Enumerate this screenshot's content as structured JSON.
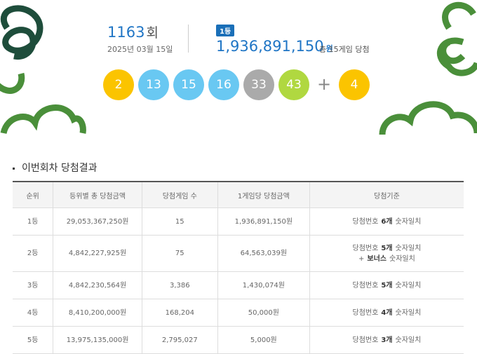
{
  "round": {
    "number": "1163",
    "suffix": "회",
    "date": "2025년 03월 15일"
  },
  "first_prize": {
    "badge": "1등",
    "amount": "1,936,891,150",
    "unit": "원",
    "winners": "총 15게임 당첨"
  },
  "balls": [
    {
      "number": 2,
      "color": "#fbc400"
    },
    {
      "number": 13,
      "color": "#69c8f2"
    },
    {
      "number": 15,
      "color": "#69c8f2"
    },
    {
      "number": 16,
      "color": "#69c8f2"
    },
    {
      "number": 33,
      "color": "#aaaaaa"
    },
    {
      "number": 43,
      "color": "#b0d840"
    }
  ],
  "plus": "+",
  "bonus": {
    "number": 4,
    "color": "#fbc400"
  },
  "section_title": "이번회차 당첨결과",
  "table": {
    "headers": [
      "순위",
      "등위별 총 당첨금액",
      "당첨게임 수",
      "1게임당 당첨금액",
      "당첨기준"
    ],
    "rows": [
      {
        "rank": "1등",
        "total": "29,053,367,250원",
        "games": "15",
        "per_game": "1,936,891,150원",
        "criteria": [
          [
            {
              "text": "당첨번호",
              "bold": false
            },
            {
              "text": "6개",
              "bold": true
            },
            {
              "text": "숫자일치",
              "bold": false
            }
          ]
        ]
      },
      {
        "rank": "2등",
        "total": "4,842,227,925원",
        "games": "75",
        "per_game": "64,563,039원",
        "criteria": [
          [
            {
              "text": "당첨번호",
              "bold": false
            },
            {
              "text": "5개",
              "bold": true
            },
            {
              "text": "숫자일치",
              "bold": false
            }
          ],
          [
            {
              "text": "+",
              "bold": false
            },
            {
              "text": "보너스",
              "bold": true
            },
            {
              "text": "숫자일치",
              "bold": false
            }
          ]
        ]
      },
      {
        "rank": "3등",
        "total": "4,842,230,564원",
        "games": "3,386",
        "per_game": "1,430,074원",
        "criteria": [
          [
            {
              "text": "당첨번호",
              "bold": false
            },
            {
              "text": "5개",
              "bold": true
            },
            {
              "text": "숫자일치",
              "bold": false
            }
          ]
        ]
      },
      {
        "rank": "4등",
        "total": "8,410,200,000원",
        "games": "168,204",
        "per_game": "50,000원",
        "criteria": [
          [
            {
              "text": "당첨번호",
              "bold": false
            },
            {
              "text": "4개",
              "bold": true
            },
            {
              "text": "숫자일치",
              "bold": false
            }
          ]
        ]
      },
      {
        "rank": "5등",
        "total": "13,975,135,000원",
        "games": "2,795,027",
        "per_game": "5,000원",
        "criteria": [
          [
            {
              "text": "당첨번호",
              "bold": false
            },
            {
              "text": "3개",
              "bold": true
            },
            {
              "text": "숫자일치",
              "bold": false
            }
          ]
        ]
      }
    ]
  }
}
